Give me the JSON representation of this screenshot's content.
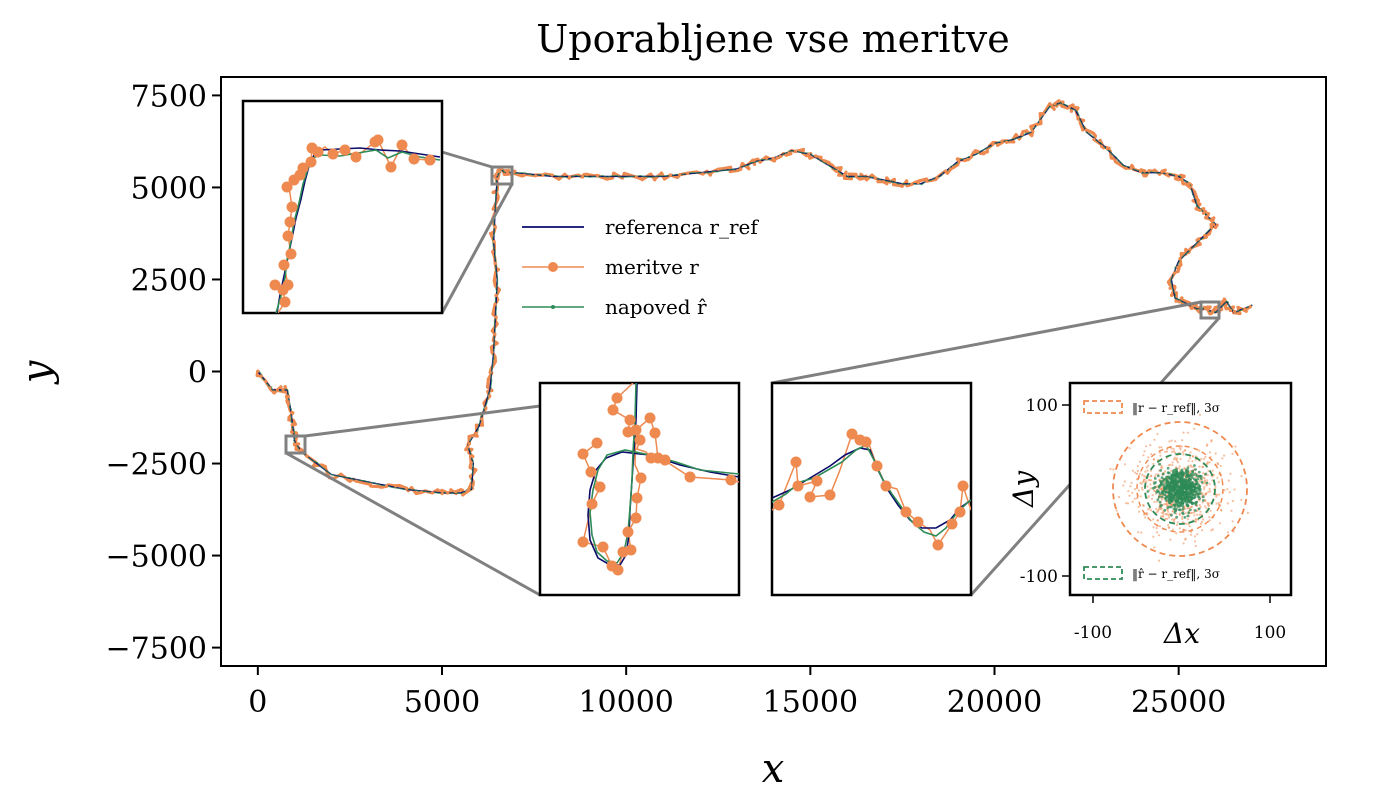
{
  "chart_data": {
    "type": "line",
    "title": "Uporabljene vse meritve",
    "xlabel": "x",
    "ylabel": "y",
    "xlim": [
      -1000,
      29000
    ],
    "ylim": [
      -8000,
      8000
    ],
    "xticks": [
      0,
      5000,
      10000,
      15000,
      20000,
      25000
    ],
    "yticks": [
      7500,
      5000,
      2500,
      0,
      -2500,
      -5000,
      -7500
    ],
    "xtick_labels": [
      "0",
      "5000",
      "10000",
      "15000",
      "20000",
      "25000"
    ],
    "ytick_labels": [
      "7500",
      "5000",
      "2500",
      "0",
      "−2500",
      "−5000",
      "−7500"
    ],
    "legend": {
      "position": "center-left",
      "entries": [
        {
          "label": "referenca r_ref",
          "color": "#0a0a6b",
          "style": "line"
        },
        {
          "label": "meritve r",
          "color": "#ee8a50",
          "style": "line+marker"
        },
        {
          "label": "napoved r̂",
          "color": "#2e8b57",
          "style": "line+dot"
        }
      ]
    },
    "series": [
      {
        "name": "referenca r_ref",
        "x": [
          0,
          400,
          800,
          900,
          950,
          1000,
          1200,
          2000,
          3000,
          4000,
          5000,
          5500,
          5800,
          5850,
          5700,
          6000,
          6300,
          6400,
          6450,
          6500,
          6400,
          6450,
          6500,
          6600,
          6700,
          7000,
          8000,
          9000,
          10000,
          11000,
          12000,
          13000,
          13500,
          14000,
          14500,
          15000,
          15500,
          16000,
          16500,
          17000,
          17500,
          18000,
          18500,
          19000,
          19500,
          20000,
          20500,
          21000,
          21500,
          21800,
          22200,
          22500,
          23000,
          23500,
          24000,
          24500,
          25000,
          25300,
          25500,
          25800,
          26000,
          25500,
          25000,
          24800,
          24900,
          25300,
          25500,
          25700,
          26000,
          26300,
          26500,
          27000
        ],
        "y": [
          0,
          -500,
          -500,
          -1100,
          -1500,
          -1900,
          -2200,
          -2800,
          -3000,
          -3200,
          -3300,
          -3300,
          -3200,
          -2500,
          -2000,
          -1500,
          -500,
          500,
          1500,
          2500,
          3500,
          4500,
          5300,
          5500,
          5400,
          5400,
          5300,
          5300,
          5300,
          5300,
          5400,
          5500,
          5700,
          5800,
          6000,
          5900,
          5600,
          5300,
          5300,
          5200,
          5100,
          5100,
          5300,
          5700,
          5900,
          6200,
          6300,
          6500,
          7200,
          7300,
          7100,
          6500,
          6100,
          5600,
          5400,
          5400,
          5300,
          5100,
          4500,
          4200,
          4000,
          3500,
          3000,
          2500,
          2000,
          1800,
          1700,
          1700,
          1600,
          1900,
          1600,
          1800
        ]
      }
    ],
    "insets": [
      {
        "name": "zoom-top-left",
        "source_x": [
          6400,
          6800
        ],
        "source_y": [
          5050,
          5450
        ]
      },
      {
        "name": "zoom-bottom-left",
        "source_x": [
          800,
          1200
        ],
        "source_y": [
          -2150,
          -1750
        ]
      },
      {
        "name": "zoom-bottom-right",
        "source_x": [
          25700,
          26100
        ],
        "source_y": [
          1450,
          1850
        ]
      }
    ],
    "error_inset": {
      "xlabel": "Δx",
      "ylabel": "Δy",
      "xticks": [
        "-100",
        "100"
      ],
      "yticks": [
        "100",
        "-100"
      ],
      "legend": [
        {
          "label": "‖r − r_ref‖, 3σ",
          "color": "#ee8a50",
          "style": "dashed"
        },
        {
          "label": "‖r̂ − r_ref‖, 3σ",
          "color": "#2e8b57",
          "style": "dashed"
        }
      ]
    }
  }
}
